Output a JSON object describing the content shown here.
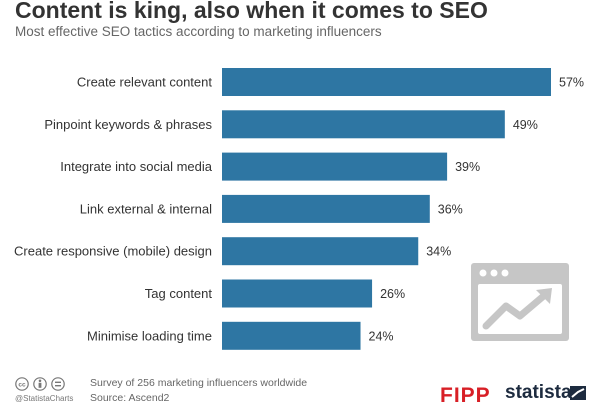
{
  "header": {
    "title": "Content is king, also when it comes to SEO",
    "subtitle": "Most effective SEO tactics according to marketing influencers"
  },
  "chart_data": {
    "type": "bar",
    "orientation": "horizontal",
    "categories": [
      "Create relevant content",
      "Pinpoint keywords & phrases",
      "Integrate into social media",
      "Link external & internal",
      "Create responsive (mobile) design",
      "Tag content",
      "Minimise loading time"
    ],
    "values": [
      57,
      49,
      39,
      36,
      34,
      26,
      24
    ],
    "value_labels": [
      "57%",
      "49%",
      "39%",
      "36%",
      "34%",
      "26%",
      "24%"
    ],
    "unit": "%",
    "bar_color": "#2e76a3",
    "grid": false
  },
  "footer": {
    "note": "Survey of 256 marketing influencers worldwide",
    "source": "Source: Ascend2",
    "handle": "@StatistaCharts",
    "brand_fipp": "FIPP",
    "brand_statista": "statista"
  },
  "colors": {
    "title": "#333333",
    "illustration": "#c6c6c6",
    "fipp": "#d81f26",
    "statista": "#1d2b3f"
  }
}
